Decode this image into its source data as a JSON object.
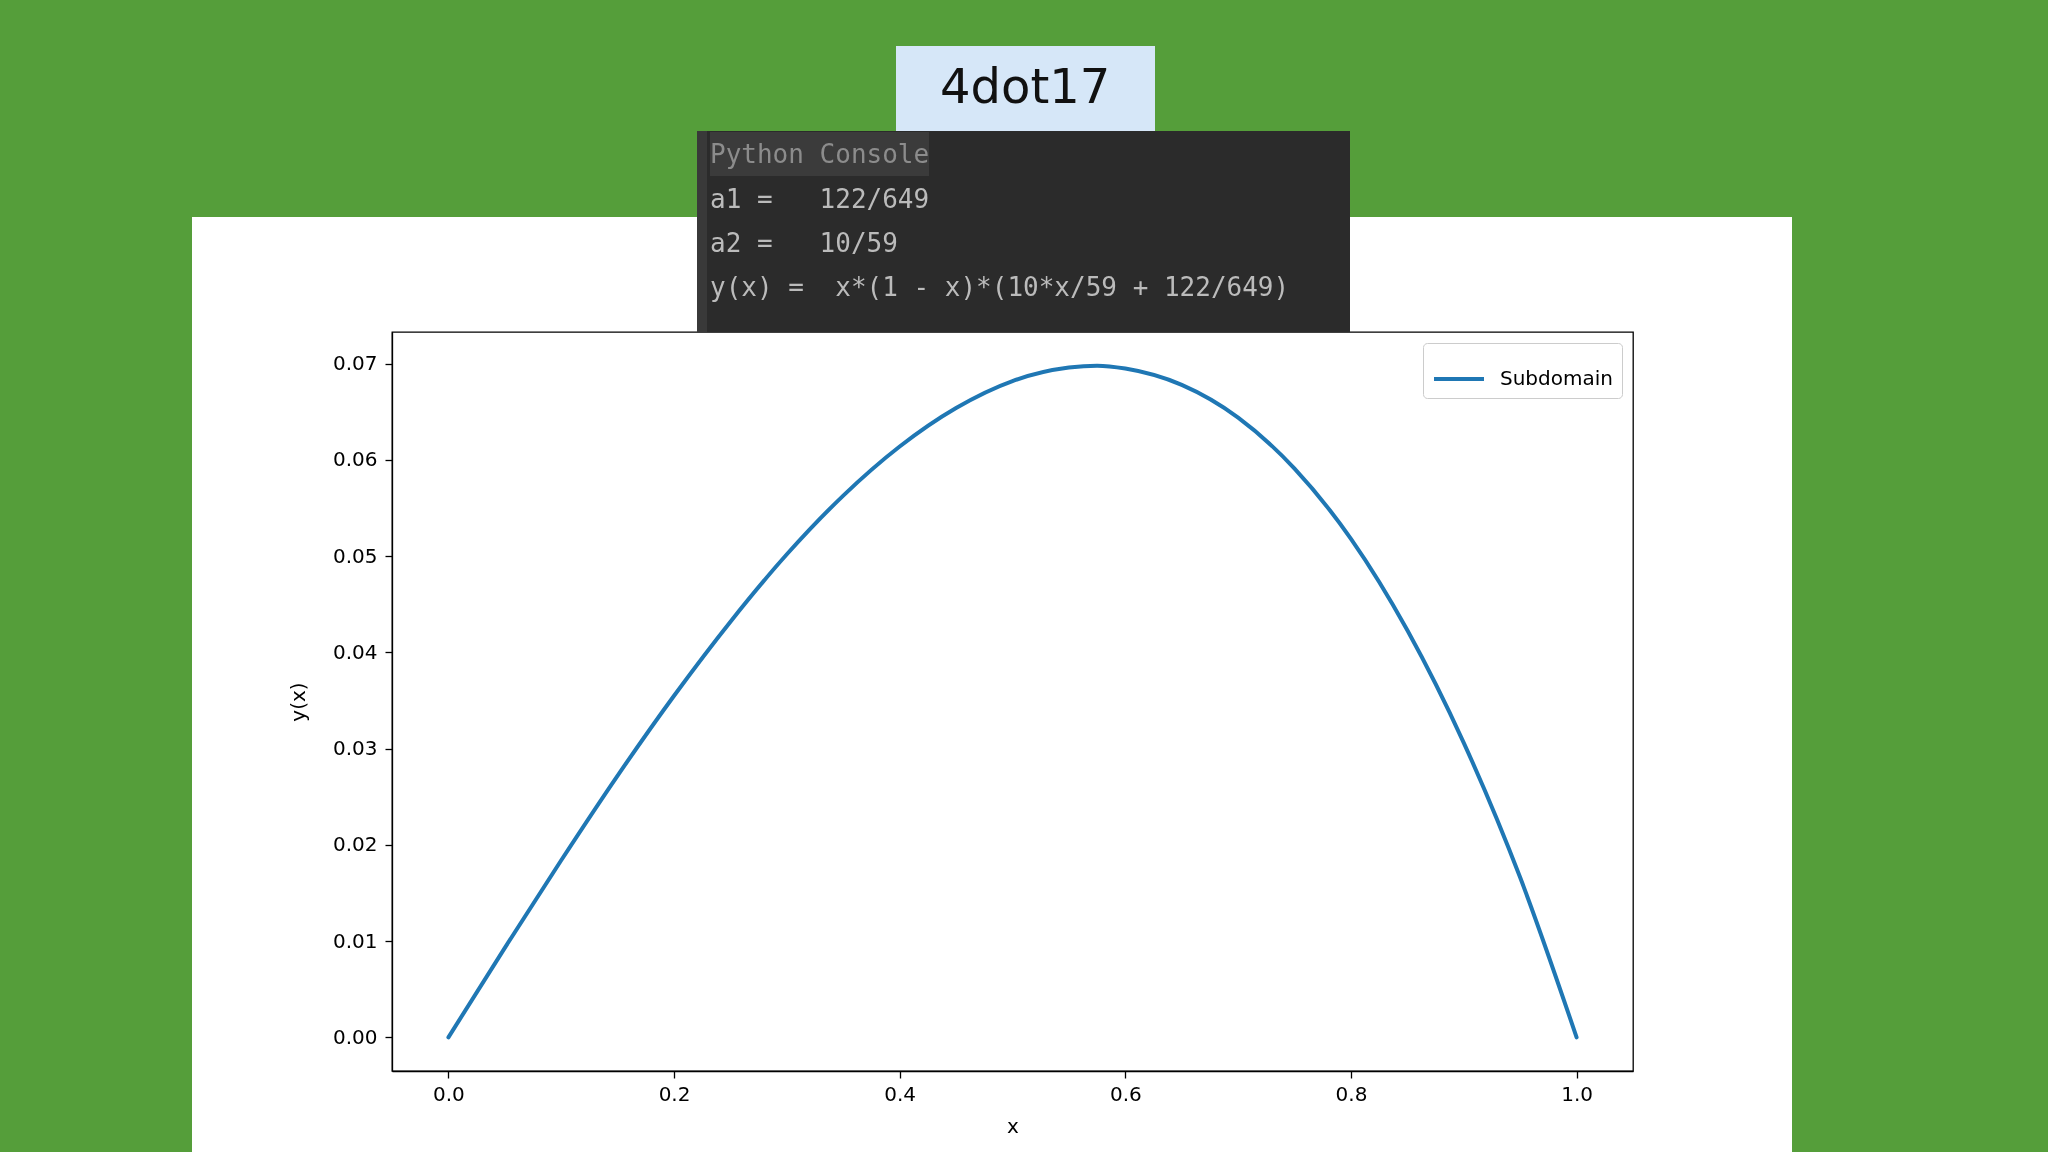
{
  "chart_data": {
    "type": "line",
    "xlabel": "x",
    "ylabel": "y(x)",
    "annotations": [
      "4dot17",
      "Python Console",
      "a1 =   122/649",
      "a2 =   10/59",
      "y(x) =  x*(1 - x)*(10*x/59 + 122/649)"
    ],
    "x": [
      0,
      0.05,
      0.1,
      0.15,
      0.2,
      0.25,
      0.3,
      0.35,
      0.4,
      0.45,
      0.5,
      0.55,
      0.575,
      0.6,
      0.65,
      0.7,
      0.75,
      0.8,
      0.85,
      0.9,
      0.95,
      1
    ],
    "series": [
      {
        "name": "Subdomain",
        "color": "#1f77b4",
        "values": [
          0,
          0.0093,
          0.0184,
          0.0272,
          0.0355,
          0.0432,
          0.0502,
          0.0563,
          0.0614,
          0.0654,
          0.0682,
          0.0696,
          0.0698,
          0.0695,
          0.0678,
          0.0644,
          0.0591,
          0.0518,
          0.0423,
          0.0306,
          0.0166,
          0
        ]
      }
    ],
    "xlim": [
      -0.05,
      1.05
    ],
    "ylim": [
      -0.0035,
      0.0733
    ],
    "xticks": [
      {
        "value": 0,
        "label": "0.0"
      },
      0.2,
      0.4,
      0.6,
      0.8,
      {
        "value": 1,
        "label": "1.0"
      }
    ],
    "yticks": [
      {
        "value": 0,
        "label": "0.00"
      },
      0.01,
      0.02,
      0.03,
      0.04,
      0.05,
      0.06,
      0.07
    ],
    "legend": "top right",
    "line_style": "solid",
    "grid": false
  }
}
